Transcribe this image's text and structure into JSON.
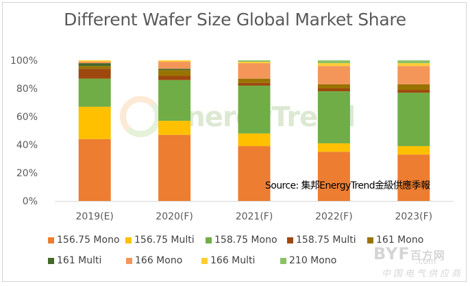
{
  "chart_data": {
    "type": "bar",
    "stacked": true,
    "title": "Different Wafer Size Global Market Share",
    "xlabel": "",
    "ylabel": "",
    "ylim": [
      0,
      100
    ],
    "yticks": [
      "0%",
      "20%",
      "40%",
      "60%",
      "80%",
      "100%"
    ],
    "ytick_values": [
      0,
      20,
      40,
      60,
      80,
      100
    ],
    "grid": false,
    "legend_position": "bottom",
    "categories": [
      "2019(E)",
      "2020(F)",
      "2021(F)",
      "2022(F)",
      "2023(F)"
    ],
    "series": [
      {
        "name": "156.75 Mono",
        "color": "#ed7d31",
        "values": [
          44,
          47,
          39,
          35,
          33
        ]
      },
      {
        "name": "156.75 Multi",
        "color": "#ffc000",
        "values": [
          23,
          10,
          9,
          6,
          6
        ]
      },
      {
        "name": "158.75 Mono",
        "color": "#70ad47",
        "values": [
          20,
          29,
          34,
          37,
          38
        ]
      },
      {
        "name": "158.75 Multi",
        "color": "#9e480e",
        "values": [
          7,
          3,
          2,
          2,
          2
        ]
      },
      {
        "name": "161 Mono",
        "color": "#997300",
        "values": [
          2,
          4,
          3,
          3,
          4
        ]
      },
      {
        "name": "161 Multi",
        "color": "#43682b",
        "values": [
          2,
          1,
          0,
          0,
          0
        ]
      },
      {
        "name": "166 Mono",
        "color": "#f4965a",
        "values": [
          1,
          5,
          11,
          13,
          13
        ]
      },
      {
        "name": "166 Multi",
        "color": "#ffcd33",
        "values": [
          1,
          1,
          1,
          2,
          2
        ]
      },
      {
        "name": "210 Mono",
        "color": "#8cc168",
        "values": [
          0,
          0,
          1,
          2,
          2
        ]
      }
    ],
    "annotation": "Source: 集邦EnergyTrend金級供應季報"
  },
  "watermarks": {
    "center": "EnergyTrend",
    "corner_logo": "BYF",
    "corner_logo_sub": "百方网",
    "corner_logo_domain": ".com",
    "corner_tagline": "中国电气供应商"
  }
}
